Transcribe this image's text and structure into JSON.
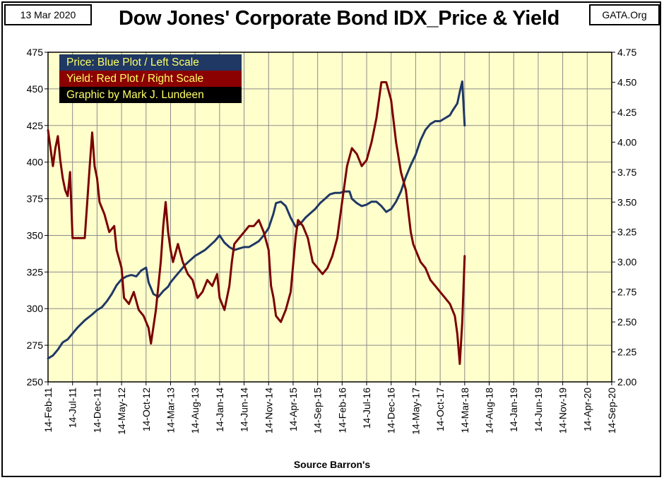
{
  "header": {
    "date": "13 Mar 2020",
    "source_site": "GATA.Org",
    "title": "Dow Jones' Corporate Bond IDX_Price & Yield"
  },
  "legend": {
    "price": "Price:  Blue Plot / Left Scale",
    "yield": "Yield:  Red Plot / Right Scale",
    "credit": "Graphic by Mark J. Lundeen"
  },
  "footer": "Source Barron's",
  "colors": {
    "plot_background": "#ffffcc",
    "price_line": "#1f3864",
    "yield_line": "#7b0000",
    "grid": "#8c8c8c"
  },
  "chart_data": {
    "type": "line",
    "title": "Dow Jones' Corporate Bond IDX_Price & Yield",
    "xlabel": "Source Barron's",
    "grid": true,
    "legend_placement": "top-left",
    "x_ticks": [
      "14-Feb-11",
      "14-Jul-11",
      "14-Dec-11",
      "14-May-12",
      "14-Oct-12",
      "14-Mar-13",
      "14-Aug-13",
      "14-Jan-14",
      "14-Jun-14",
      "14-Nov-14",
      "14-Apr-15",
      "14-Sep-15",
      "14-Feb-16",
      "14-Jul-16",
      "14-Dec-16",
      "14-May-17",
      "14-Oct-17",
      "14-Mar-18",
      "14-Aug-18",
      "14-Jan-19",
      "14-Jun-19",
      "14-Nov-19",
      "14-Apr-20",
      "14-Sep-20"
    ],
    "left_axis": {
      "min": 250,
      "max": 475,
      "ticks": [
        250,
        275,
        300,
        325,
        350,
        375,
        400,
        425,
        450,
        475
      ]
    },
    "right_axis": {
      "min": 2.0,
      "max": 4.75,
      "ticks": [
        "2.00",
        "2.25",
        "2.50",
        "2.75",
        "3.00",
        "3.25",
        "3.50",
        "3.75",
        "4.00",
        "4.25",
        "4.50",
        "4.75"
      ]
    },
    "series": [
      {
        "name": "Price",
        "axis": "left",
        "values": [
          [
            0,
            266
          ],
          [
            0.2,
            268
          ],
          [
            0.4,
            272
          ],
          [
            0.6,
            277
          ],
          [
            0.8,
            279
          ],
          [
            1.0,
            283
          ],
          [
            1.2,
            287
          ],
          [
            1.5,
            292
          ],
          [
            1.8,
            296
          ],
          [
            2.0,
            299
          ],
          [
            2.2,
            301
          ],
          [
            2.4,
            305
          ],
          [
            2.6,
            310
          ],
          [
            2.8,
            316
          ],
          [
            3.0,
            320
          ],
          [
            3.2,
            322
          ],
          [
            3.4,
            323
          ],
          [
            3.6,
            322
          ],
          [
            3.8,
            326
          ],
          [
            4.0,
            328
          ],
          [
            4.1,
            318
          ],
          [
            4.3,
            310
          ],
          [
            4.5,
            308
          ],
          [
            4.7,
            312
          ],
          [
            4.9,
            315
          ],
          [
            5.0,
            318
          ],
          [
            5.2,
            322
          ],
          [
            5.4,
            326
          ],
          [
            5.6,
            330
          ],
          [
            5.8,
            333
          ],
          [
            6.0,
            336
          ],
          [
            6.2,
            338
          ],
          [
            6.4,
            340
          ],
          [
            6.6,
            343
          ],
          [
            6.8,
            346
          ],
          [
            7.0,
            350
          ],
          [
            7.2,
            345
          ],
          [
            7.4,
            342
          ],
          [
            7.6,
            340
          ],
          [
            7.8,
            341
          ],
          [
            8.0,
            342
          ],
          [
            8.2,
            342
          ],
          [
            8.4,
            344
          ],
          [
            8.6,
            346
          ],
          [
            8.8,
            350
          ],
          [
            9.0,
            355
          ],
          [
            9.2,
            365
          ],
          [
            9.3,
            372
          ],
          [
            9.5,
            373
          ],
          [
            9.7,
            370
          ],
          [
            9.9,
            362
          ],
          [
            10.1,
            356
          ],
          [
            10.3,
            358
          ],
          [
            10.5,
            362
          ],
          [
            10.7,
            365
          ],
          [
            10.9,
            368
          ],
          [
            11.1,
            372
          ],
          [
            11.3,
            375
          ],
          [
            11.5,
            378
          ],
          [
            11.7,
            379
          ],
          [
            11.9,
            379
          ],
          [
            12.1,
            380
          ],
          [
            12.3,
            380
          ],
          [
            12.4,
            375
          ],
          [
            12.6,
            372
          ],
          [
            12.8,
            370
          ],
          [
            13.0,
            371
          ],
          [
            13.2,
            373
          ],
          [
            13.4,
            373
          ],
          [
            13.6,
            370
          ],
          [
            13.8,
            366
          ],
          [
            14.0,
            368
          ],
          [
            14.2,
            373
          ],
          [
            14.4,
            380
          ],
          [
            14.6,
            390
          ],
          [
            14.8,
            398
          ],
          [
            15.0,
            405
          ],
          [
            15.2,
            415
          ],
          [
            15.4,
            422
          ],
          [
            15.6,
            426
          ],
          [
            15.8,
            428
          ],
          [
            16.0,
            428
          ],
          [
            16.2,
            430
          ],
          [
            16.4,
            432
          ],
          [
            16.5,
            435
          ],
          [
            16.7,
            440
          ],
          [
            16.8,
            448
          ],
          [
            16.9,
            455
          ],
          [
            17.0,
            425
          ]
        ]
      },
      {
        "name": "Yield",
        "axis": "right",
        "values": [
          [
            0,
            4.1
          ],
          [
            0.1,
            3.95
          ],
          [
            0.2,
            3.8
          ],
          [
            0.3,
            3.95
          ],
          [
            0.4,
            4.05
          ],
          [
            0.5,
            3.85
          ],
          [
            0.6,
            3.7
          ],
          [
            0.7,
            3.6
          ],
          [
            0.8,
            3.55
          ],
          [
            0.9,
            3.75
          ],
          [
            1.0,
            3.2
          ],
          [
            1.1,
            3.2
          ],
          [
            1.3,
            3.2
          ],
          [
            1.5,
            3.2
          ],
          [
            1.6,
            3.5
          ],
          [
            1.7,
            3.8
          ],
          [
            1.8,
            4.08
          ],
          [
            1.9,
            3.8
          ],
          [
            2.0,
            3.7
          ],
          [
            2.1,
            3.5
          ],
          [
            2.3,
            3.4
          ],
          [
            2.5,
            3.25
          ],
          [
            2.7,
            3.3
          ],
          [
            2.8,
            3.1
          ],
          [
            3.0,
            2.95
          ],
          [
            3.1,
            2.7
          ],
          [
            3.3,
            2.65
          ],
          [
            3.5,
            2.75
          ],
          [
            3.7,
            2.6
          ],
          [
            3.9,
            2.55
          ],
          [
            4.1,
            2.45
          ],
          [
            4.2,
            2.32
          ],
          [
            4.4,
            2.6
          ],
          [
            4.6,
            3.0
          ],
          [
            4.7,
            3.3
          ],
          [
            4.8,
            3.5
          ],
          [
            4.9,
            3.25
          ],
          [
            5.0,
            3.1
          ],
          [
            5.1,
            3.0
          ],
          [
            5.3,
            3.15
          ],
          [
            5.5,
            3.0
          ],
          [
            5.7,
            2.9
          ],
          [
            5.9,
            2.85
          ],
          [
            6.1,
            2.7
          ],
          [
            6.3,
            2.75
          ],
          [
            6.5,
            2.85
          ],
          [
            6.7,
            2.8
          ],
          [
            6.9,
            2.9
          ],
          [
            7.0,
            2.7
          ],
          [
            7.1,
            2.65
          ],
          [
            7.2,
            2.6
          ],
          [
            7.4,
            2.8
          ],
          [
            7.5,
            3.0
          ],
          [
            7.6,
            3.15
          ],
          [
            7.8,
            3.2
          ],
          [
            8.0,
            3.25
          ],
          [
            8.2,
            3.3
          ],
          [
            8.4,
            3.3
          ],
          [
            8.6,
            3.35
          ],
          [
            8.8,
            3.25
          ],
          [
            9.0,
            3.1
          ],
          [
            9.1,
            2.8
          ],
          [
            9.2,
            2.7
          ],
          [
            9.3,
            2.55
          ],
          [
            9.5,
            2.5
          ],
          [
            9.7,
            2.6
          ],
          [
            9.9,
            2.75
          ],
          [
            10.1,
            3.2
          ],
          [
            10.2,
            3.35
          ],
          [
            10.4,
            3.3
          ],
          [
            10.6,
            3.2
          ],
          [
            10.8,
            3.0
          ],
          [
            11.0,
            2.95
          ],
          [
            11.2,
            2.9
          ],
          [
            11.4,
            2.95
          ],
          [
            11.6,
            3.05
          ],
          [
            11.8,
            3.2
          ],
          [
            12.0,
            3.5
          ],
          [
            12.2,
            3.8
          ],
          [
            12.4,
            3.95
          ],
          [
            12.6,
            3.9
          ],
          [
            12.8,
            3.8
          ],
          [
            13.0,
            3.85
          ],
          [
            13.2,
            4.0
          ],
          [
            13.4,
            4.2
          ],
          [
            13.6,
            4.5
          ],
          [
            13.8,
            4.5
          ],
          [
            14.0,
            4.35
          ],
          [
            14.2,
            4.0
          ],
          [
            14.4,
            3.75
          ],
          [
            14.6,
            3.6
          ],
          [
            14.8,
            3.25
          ],
          [
            14.9,
            3.15
          ],
          [
            15.0,
            3.1
          ],
          [
            15.2,
            3.0
          ],
          [
            15.4,
            2.95
          ],
          [
            15.6,
            2.85
          ],
          [
            15.8,
            2.8
          ],
          [
            16.0,
            2.75
          ],
          [
            16.2,
            2.7
          ],
          [
            16.4,
            2.65
          ],
          [
            16.6,
            2.55
          ],
          [
            16.7,
            2.4
          ],
          [
            16.8,
            2.15
          ],
          [
            16.9,
            2.5
          ],
          [
            17.0,
            3.05
          ]
        ]
      }
    ]
  }
}
